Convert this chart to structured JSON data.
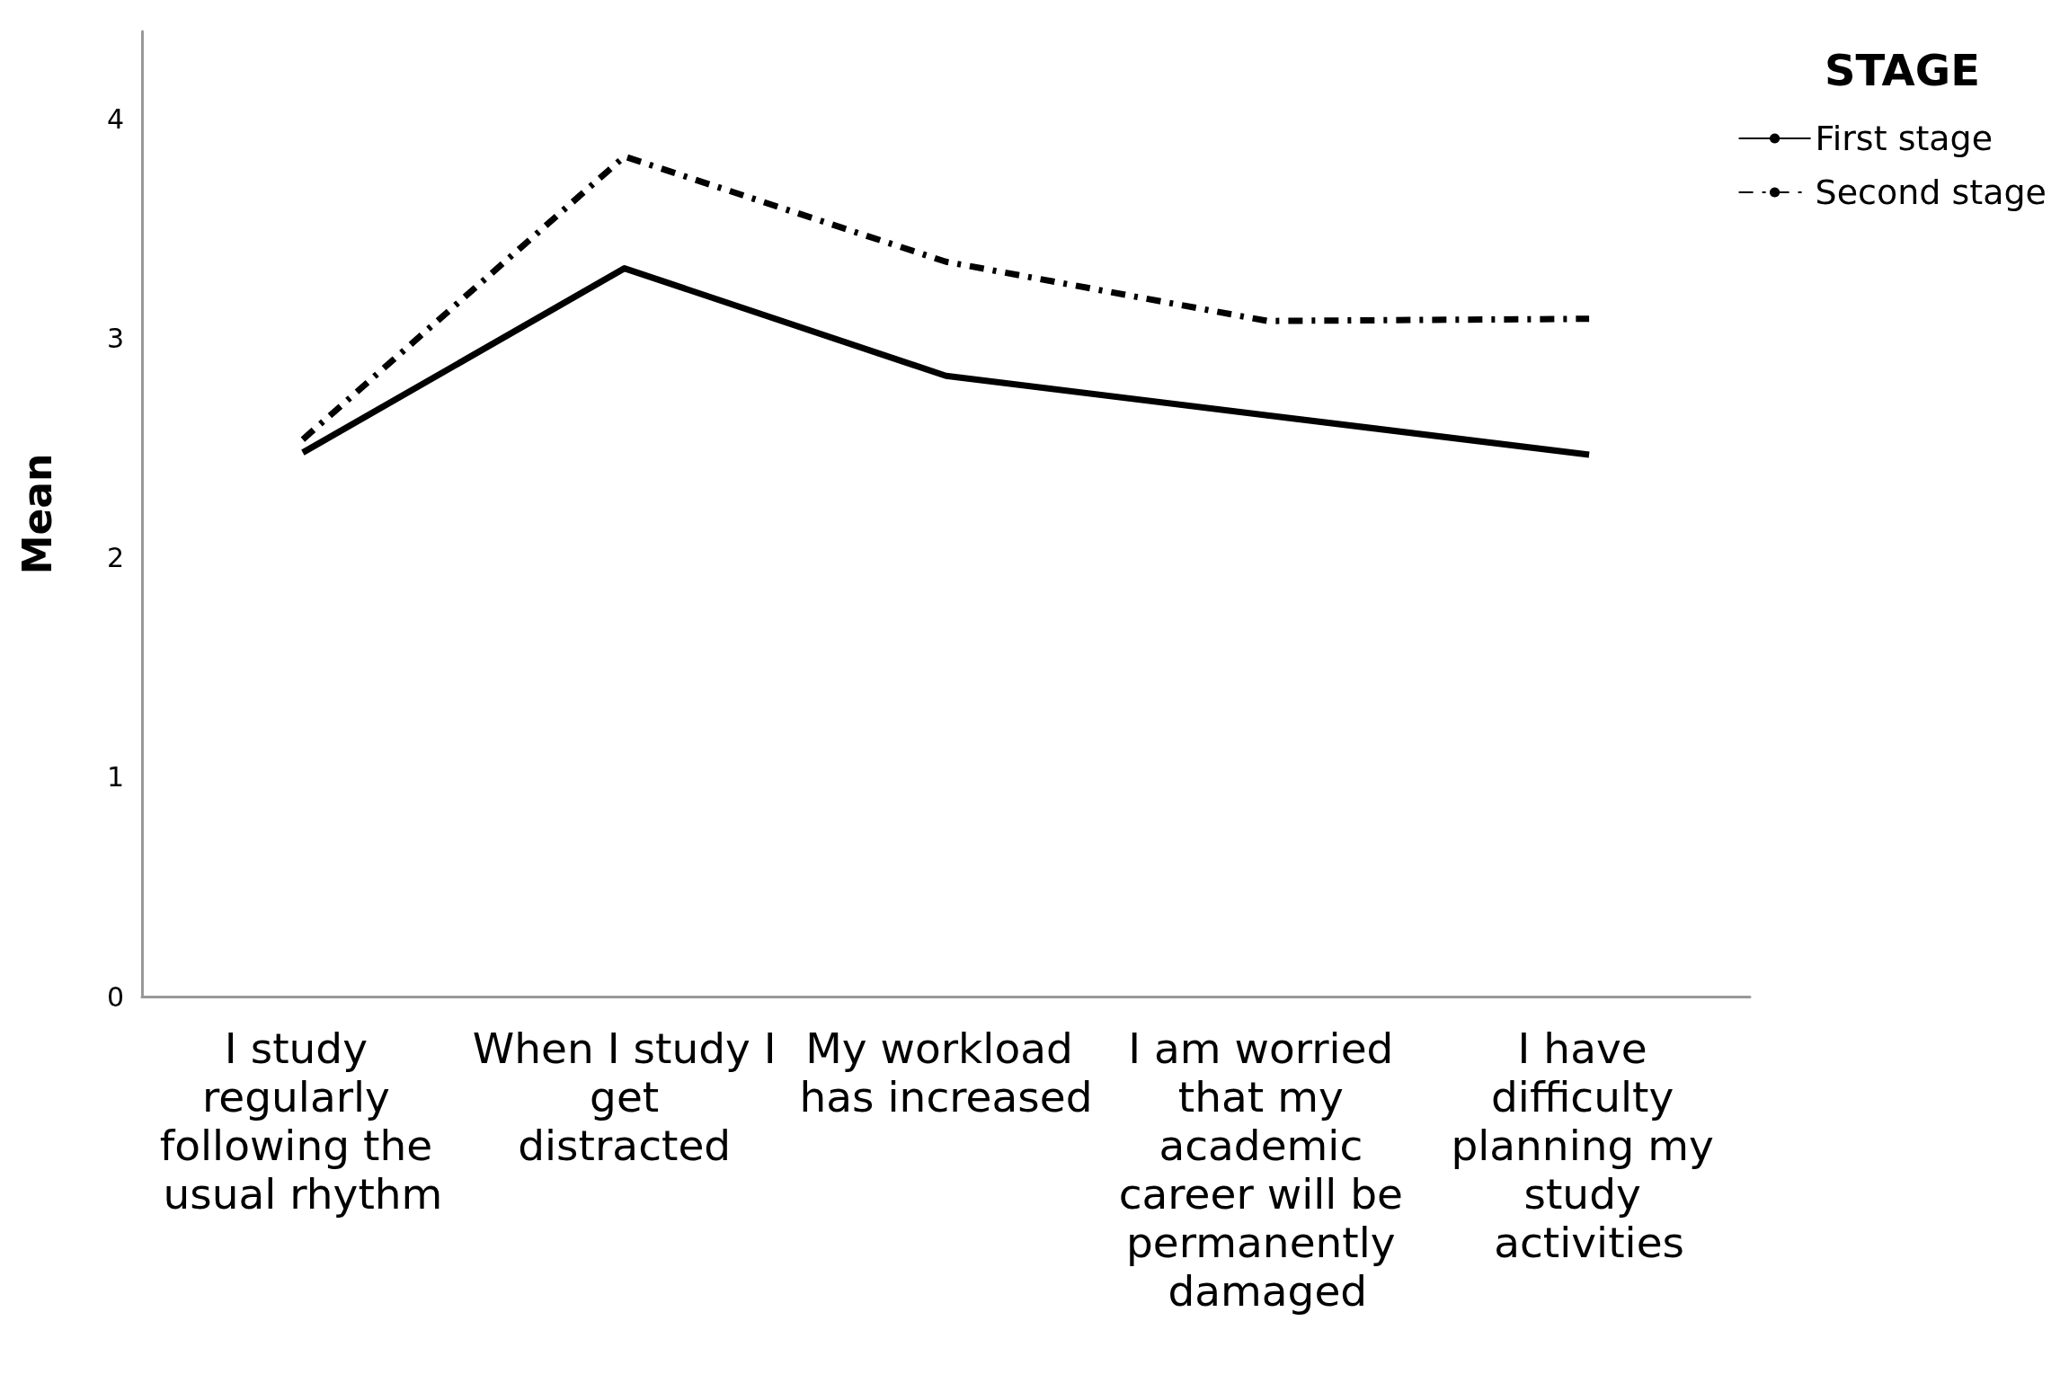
{
  "chart_data": {
    "type": "line",
    "ylabel": "Mean",
    "legend_title": "STAGE",
    "categories": [
      "I study regularly following the usual rhythm",
      "When I study I get distracted",
      "My workload has increased",
      "I am worried that my academic career will be permanently damaged",
      "I have difficulty planning my study activities"
    ],
    "series": [
      {
        "name": "First stage",
        "color": "#000000",
        "line_style": "solid",
        "values": [
          2.48,
          3.32,
          2.83,
          2.65,
          2.47
        ]
      },
      {
        "name": "Second stage",
        "color": "#000000",
        "line_style": "dashed",
        "values": [
          2.54,
          3.83,
          3.35,
          3.08,
          3.09
        ]
      }
    ],
    "ylim": [
      0,
      4.4
    ],
    "yticks": [
      0,
      1,
      2,
      3,
      4
    ],
    "grid": false,
    "legend": "top right",
    "marker": "none"
  }
}
